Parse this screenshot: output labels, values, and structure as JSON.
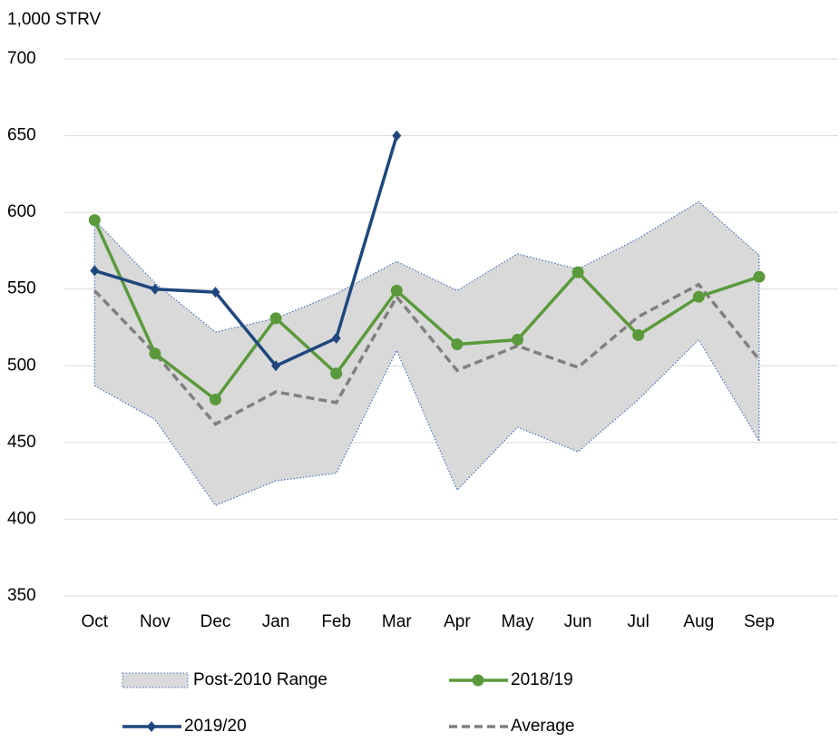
{
  "chart_data": {
    "type": "line",
    "y_label": "1,000 STRV",
    "categories": [
      "Oct",
      "Nov",
      "Dec",
      "Jan",
      "Feb",
      "Mar",
      "Apr",
      "May",
      "Jun",
      "Jul",
      "Aug",
      "Sep"
    ],
    "ylim": [
      350,
      700
    ],
    "yticks": [
      350,
      400,
      450,
      500,
      550,
      600,
      650,
      700
    ],
    "grid": true,
    "range": {
      "name": "Post-2010 Range",
      "color": "#d9d9d9",
      "border_color": "#4472c4",
      "high": [
        595,
        554,
        522,
        531,
        547,
        568,
        549,
        573,
        563,
        583,
        607,
        572
      ],
      "low": [
        487,
        465,
        409,
        425,
        430,
        510,
        419,
        460,
        444,
        478,
        517,
        451
      ]
    },
    "series": [
      {
        "name": "2018/19",
        "color": "#5b9a3c",
        "marker": "circle",
        "dash": false,
        "values": [
          595,
          508,
          478,
          531,
          495,
          549,
          514,
          517,
          561,
          520,
          545,
          558
        ]
      },
      {
        "name": "2019/20",
        "color": "#1f477d",
        "marker": "diamond",
        "dash": false,
        "values": [
          562,
          550,
          548,
          500,
          518,
          650,
          null,
          null,
          null,
          null,
          null,
          null
        ]
      },
      {
        "name": "Average",
        "color": "#808080",
        "marker": "none",
        "dash": true,
        "values": [
          549,
          508,
          462,
          483,
          476,
          545,
          497,
          513,
          499,
          532,
          553,
          504
        ]
      }
    ]
  }
}
